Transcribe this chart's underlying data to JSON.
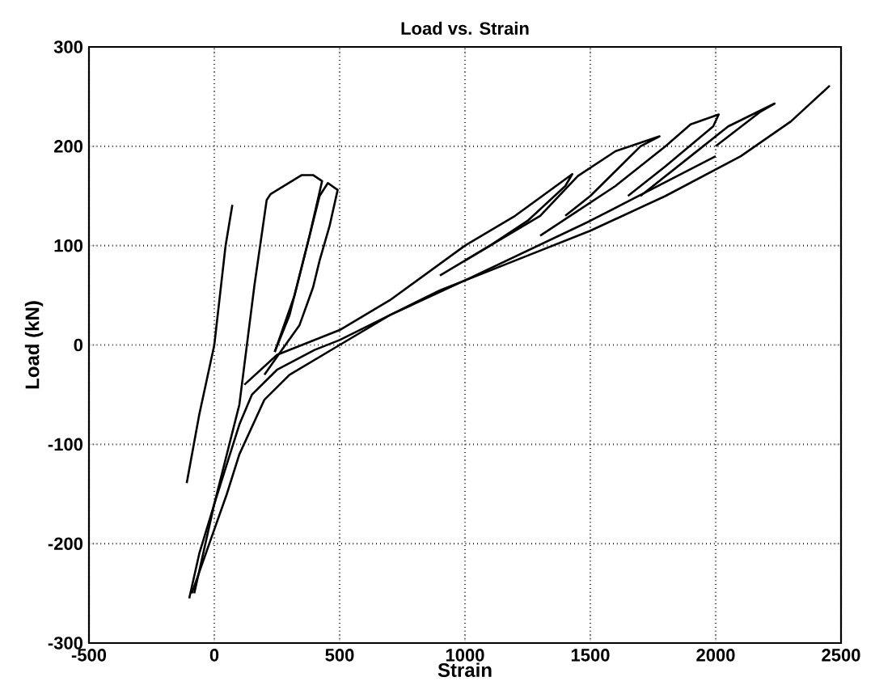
{
  "chart_data": {
    "type": "line",
    "title": "Load vs. Strain",
    "xlabel": "Strain",
    "ylabel": "Load (kN)",
    "xlim": [
      -500,
      2500
    ],
    "xticks": [
      -500,
      0,
      500,
      1000,
      1500,
      2000,
      2500
    ],
    "ylim": [
      -300,
      300
    ],
    "yticks": [
      -300,
      -200,
      -100,
      0,
      100,
      200,
      300
    ],
    "grid": true,
    "series": [
      {
        "color": "#000000",
        "x": [
          -110,
          -60,
          0,
          45,
          72
        ],
        "values": [
          -139,
          -70,
          0,
          100,
          141
        ]
      },
      {
        "color": "#000000",
        "x": [
          -80,
          0,
          100,
          160,
          209,
          225,
          349,
          394,
          430,
          380,
          320,
          241
        ],
        "values": [
          -250,
          -160,
          -60,
          60,
          146,
          152,
          171,
          171,
          165,
          110,
          50,
          -7
        ]
      },
      {
        "color": "#000000",
        "x": [
          241,
          300,
          350,
          420,
          453,
          492,
          460,
          420,
          394,
          340,
          264,
          200
        ],
        "values": [
          -7,
          30,
          80,
          150,
          163,
          156,
          120,
          85,
          58,
          20,
          -7,
          -30
        ]
      },
      {
        "color": "#000000",
        "x": [
          -100,
          -60,
          0,
          50,
          100,
          150,
          250,
          400,
          500,
          700,
          900,
          1200,
          1500,
          1800,
          2100,
          2300,
          2455
        ],
        "values": [
          -255,
          -210,
          -160,
          -120,
          -80,
          -50,
          -25,
          -5,
          5,
          30,
          55,
          85,
          115,
          150,
          190,
          225,
          261
        ]
      },
      {
        "color": "#000000",
        "x": [
          120,
          250,
          500,
          700,
          1000,
          1200,
          1428,
          1400,
          1250,
          1100,
          900
        ],
        "values": [
          -40,
          -10,
          15,
          45,
          100,
          130,
          172,
          160,
          125,
          100,
          70
        ]
      },
      {
        "color": "#000000",
        "x": [
          1000,
          1300,
          1450,
          1600,
          1776,
          1700,
          1500,
          1400
        ],
        "values": [
          85,
          130,
          170,
          195,
          210,
          200,
          150,
          130
        ]
      },
      {
        "color": "#000000",
        "x": [
          1300,
          1600,
          1800,
          1900,
          2012,
          1990,
          1800,
          1650
        ],
        "values": [
          110,
          160,
          200,
          222,
          232,
          220,
          180,
          150
        ]
      },
      {
        "color": "#000000",
        "x": [
          1700,
          1900,
          2050,
          2235,
          2180,
          2000
        ],
        "values": [
          150,
          190,
          220,
          243,
          235,
          200
        ]
      },
      {
        "color": "#000000",
        "x": [
          2000,
          1500,
          1000,
          700,
          500,
          300,
          200,
          100,
          50,
          -20,
          -90
        ],
        "values": [
          190,
          125,
          65,
          30,
          0,
          -30,
          -55,
          -110,
          -150,
          -200,
          -250
        ]
      }
    ]
  }
}
